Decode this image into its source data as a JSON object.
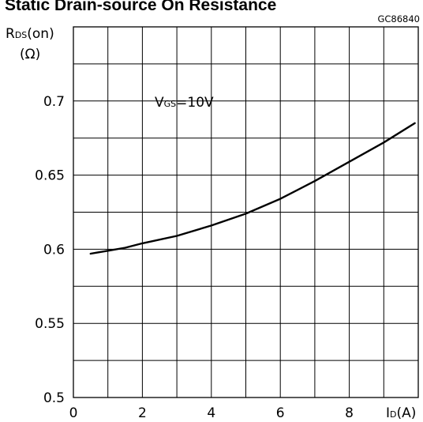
{
  "header": {
    "title": "Static Drain-source On Resistance",
    "code": "GC86840"
  },
  "chart_data": {
    "type": "line",
    "title": "Static Drain-source On Resistance",
    "ylabel": {
      "main": "R",
      "sub": "DS",
      "suffix": "(on)",
      "unit": "(Ω)"
    },
    "xlabel": {
      "main": "I",
      "sub": "D",
      "suffix": "(A)"
    },
    "annotation": {
      "main": "V",
      "sub": "GS",
      "suffix": "=10V"
    },
    "xlim": [
      0,
      10
    ],
    "ylim": [
      0.5,
      0.75
    ],
    "x_tick_labels": [
      "0",
      "2",
      "4",
      "6",
      "8"
    ],
    "y_tick_labels": [
      "0.5",
      "0.55",
      "0.6",
      "0.65",
      "0.7"
    ],
    "grid": true,
    "series": [
      {
        "x": [
          0.5,
          1,
          1.5,
          2,
          3,
          4,
          5,
          6,
          7,
          8,
          9,
          9.9
        ],
        "y": [
          0.597,
          0.599,
          0.601,
          0.604,
          0.609,
          0.616,
          0.624,
          0.634,
          0.646,
          0.659,
          0.672,
          0.685
        ]
      }
    ]
  }
}
